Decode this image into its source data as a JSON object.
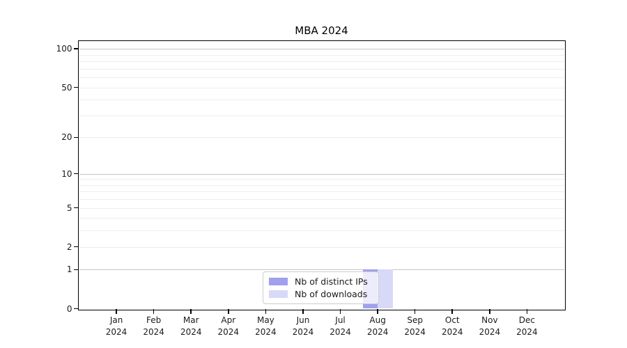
{
  "title": "MBA 2024",
  "chart_data": {
    "type": "bar",
    "title": "MBA 2024",
    "x_axis": {
      "months": [
        "Jan",
        "Feb",
        "Mar",
        "Apr",
        "May",
        "Jun",
        "Jul",
        "Aug",
        "Sep",
        "Oct",
        "Nov",
        "Dec"
      ],
      "year": "2024"
    },
    "y_axis": {
      "scale": "log1p",
      "tick_values": [
        100,
        50,
        20,
        10,
        5,
        2,
        1,
        0
      ],
      "minor_gridline_values": [
        90,
        80,
        70,
        60,
        50,
        40,
        30,
        20,
        9,
        8,
        7,
        6,
        5,
        4,
        3,
        2
      ],
      "emphasized_gridline_values": [
        100,
        10,
        1
      ],
      "ylim": [
        0,
        115
      ]
    },
    "series": [
      {
        "name": "Nb of distinct IPs",
        "color": "#a0a0ee",
        "values": [
          0,
          0,
          0,
          0,
          0,
          0,
          0,
          1,
          0,
          0,
          0,
          0
        ]
      },
      {
        "name": "Nb of downloads",
        "color": "#d8d8f8",
        "values": [
          0,
          0,
          0,
          0,
          0,
          0,
          0,
          1,
          0,
          0,
          0,
          0
        ]
      }
    ],
    "legend": {
      "position": "lower-center"
    },
    "colors": {
      "spine": "#000000",
      "text": "#1a1a1a",
      "grid_minor": "#ededed",
      "grid_major": "#c6c6c6",
      "legend_border": "#cccccc",
      "background": "#ffffff"
    }
  }
}
